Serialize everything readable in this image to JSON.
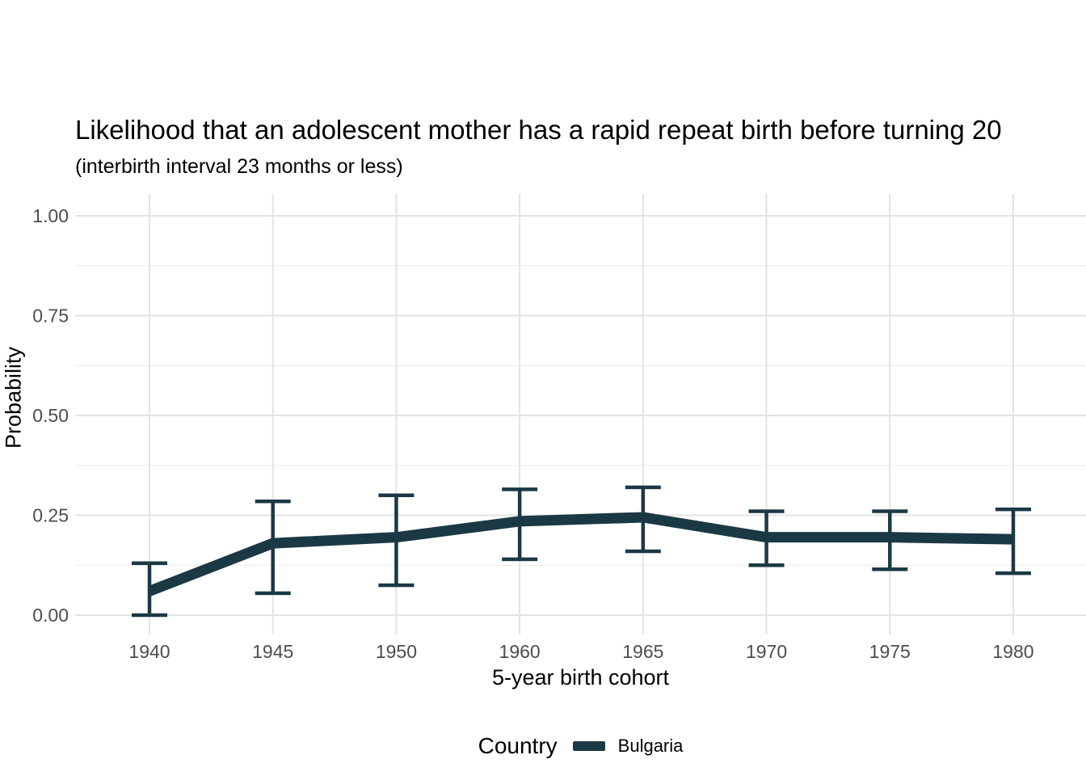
{
  "chart_data": {
    "type": "line",
    "title": "Likelihood that an adolescent mother has a rapid repeat birth before turning 20",
    "subtitle": "(interbirth interval 23 months or less)",
    "xlabel": "5-year birth cohort",
    "ylabel": "Probability",
    "categories": [
      "1940",
      "1945",
      "1950",
      "1960",
      "1965",
      "1970",
      "1975",
      "1980"
    ],
    "series": [
      {
        "name": "Bulgaria",
        "color": "#1b3944",
        "values": [
          0.06,
          0.18,
          0.195,
          0.235,
          0.245,
          0.195,
          0.195,
          0.19
        ],
        "ci_low": [
          0.0,
          0.055,
          0.075,
          0.14,
          0.16,
          0.125,
          0.115,
          0.105
        ],
        "ci_high": [
          0.13,
          0.285,
          0.3,
          0.315,
          0.32,
          0.26,
          0.26,
          0.265
        ]
      }
    ],
    "error_bars": true,
    "ylim": [
      0,
      1
    ],
    "yticks": [
      "0.00",
      "0.25",
      "0.50",
      "0.75",
      "1.00"
    ],
    "grid": {
      "major": true,
      "minor": true
    },
    "legend": {
      "title": "Country",
      "position": "bottom",
      "entries": [
        {
          "label": "Bulgaria",
          "color": "#1b3944"
        }
      ]
    }
  },
  "colors": {
    "background": "#ffffff",
    "grid_major": "#e3e3e3",
    "grid_minor": "#efefef",
    "tick_label": "#4d4d4d",
    "text": "#000000"
  }
}
